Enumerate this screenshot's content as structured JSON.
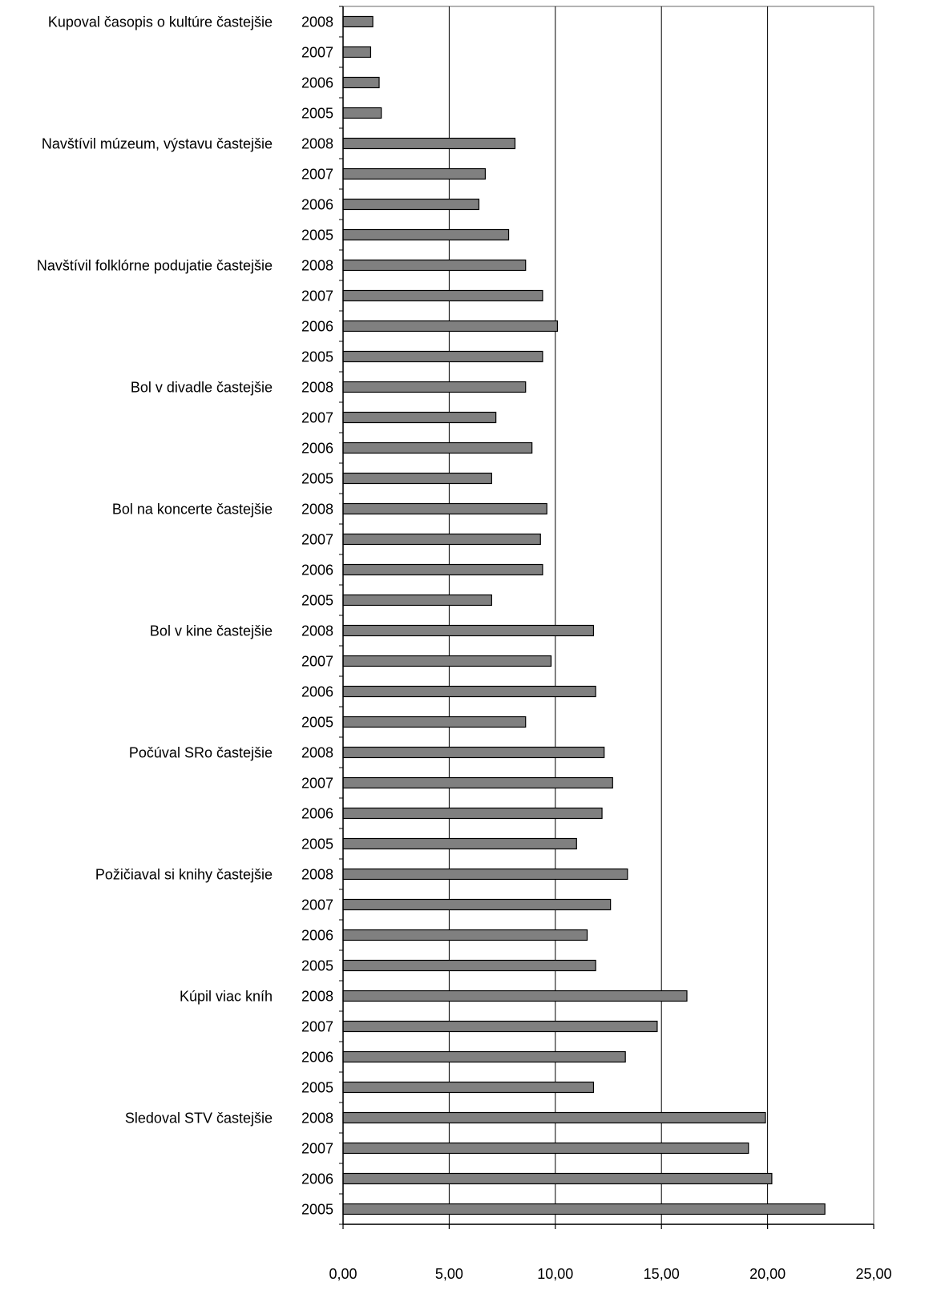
{
  "colors": {
    "bar_fill": "#808080",
    "bar_stroke": "#000000",
    "gridline": "#000000",
    "plot_border": "#808080",
    "axis": "#000000",
    "background": "#ffffff"
  },
  "chart_data": {
    "type": "bar",
    "orientation": "horizontal",
    "title": "",
    "xlabel": "",
    "ylabel": "",
    "xlim": [
      0,
      25
    ],
    "xticks": [
      0,
      5,
      10,
      15,
      20,
      25
    ],
    "xtick_labels": [
      "0,00",
      "5,00",
      "10,00",
      "15,00",
      "20,00",
      "25,00"
    ],
    "grid": "vertical major gridlines",
    "legend": "none",
    "categories": [
      {
        "group": "Kupoval časopis o kultúre častejšie",
        "year": "2008",
        "value": 1.4
      },
      {
        "group": "",
        "year": "2007",
        "value": 1.3
      },
      {
        "group": "",
        "year": "2006",
        "value": 1.7
      },
      {
        "group": "",
        "year": "2005",
        "value": 1.8
      },
      {
        "group": "Navštívil múzeum, výstavu častejšie",
        "year": "2008",
        "value": 8.1
      },
      {
        "group": "",
        "year": "2007",
        "value": 6.7
      },
      {
        "group": "",
        "year": "2006",
        "value": 6.4
      },
      {
        "group": "",
        "year": "2005",
        "value": 7.8
      },
      {
        "group": "Navštívil folklórne podujatie častejšie",
        "year": "2008",
        "value": 8.6
      },
      {
        "group": "",
        "year": "2007",
        "value": 9.4
      },
      {
        "group": "",
        "year": "2006",
        "value": 10.1
      },
      {
        "group": "",
        "year": "2005",
        "value": 9.4
      },
      {
        "group": "Bol v divadle častejšie",
        "year": "2008",
        "value": 8.6
      },
      {
        "group": "",
        "year": "2007",
        "value": 7.2
      },
      {
        "group": "",
        "year": "2006",
        "value": 8.9
      },
      {
        "group": "",
        "year": "2005",
        "value": 7.0
      },
      {
        "group": "Bol na koncerte častejšie",
        "year": "2008",
        "value": 9.6
      },
      {
        "group": "",
        "year": "2007",
        "value": 9.3
      },
      {
        "group": "",
        "year": "2006",
        "value": 9.4
      },
      {
        "group": "",
        "year": "2005",
        "value": 7.0
      },
      {
        "group": "Bol v kine častejšie",
        "year": "2008",
        "value": 11.8
      },
      {
        "group": "",
        "year": "2007",
        "value": 9.8
      },
      {
        "group": "",
        "year": "2006",
        "value": 11.9
      },
      {
        "group": "",
        "year": "2005",
        "value": 8.6
      },
      {
        "group": "Počúval SRo častejšie",
        "year": "2008",
        "value": 12.3
      },
      {
        "group": "",
        "year": "2007",
        "value": 12.7
      },
      {
        "group": "",
        "year": "2006",
        "value": 12.2
      },
      {
        "group": "",
        "year": "2005",
        "value": 11.0
      },
      {
        "group": "Požičiaval si knihy častejšie",
        "year": "2008",
        "value": 13.4
      },
      {
        "group": "",
        "year": "2007",
        "value": 12.6
      },
      {
        "group": "",
        "year": "2006",
        "value": 11.5
      },
      {
        "group": "",
        "year": "2005",
        "value": 11.9
      },
      {
        "group": "Kúpil viac kníh",
        "year": "2008",
        "value": 16.2
      },
      {
        "group": "",
        "year": "2007",
        "value": 14.8
      },
      {
        "group": "",
        "year": "2006",
        "value": 13.3
      },
      {
        "group": "",
        "year": "2005",
        "value": 11.8
      },
      {
        "group": "Sledoval STV častejšie",
        "year": "2008",
        "value": 19.9
      },
      {
        "group": "",
        "year": "2007",
        "value": 19.1
      },
      {
        "group": "",
        "year": "2006",
        "value": 20.2
      },
      {
        "group": "",
        "year": "2005",
        "value": 22.7
      }
    ]
  }
}
